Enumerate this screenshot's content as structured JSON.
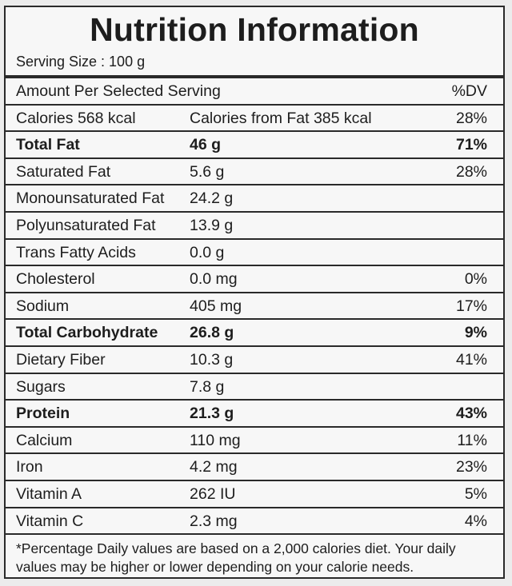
{
  "title": "Nutrition Information",
  "serving_size": "Serving Size : 100 g",
  "header": {
    "label": "Amount Per Selected Serving",
    "dv": "%DV"
  },
  "calories": {
    "label": "Calories 568 kcal",
    "fat_calories": "Calories from Fat 385 kcal",
    "dv": "28%"
  },
  "rows": [
    {
      "name": "Total Fat",
      "amount": "46 g",
      "dv": "71%",
      "bold": true
    },
    {
      "name": "Saturated Fat",
      "amount": "5.6 g",
      "dv": "28%",
      "bold": false
    },
    {
      "name": "Monounsaturated Fat",
      "amount": "24.2 g",
      "dv": "",
      "bold": false
    },
    {
      "name": "Polyunsaturated Fat",
      "amount": "13.9 g",
      "dv": "",
      "bold": false
    },
    {
      "name": "Trans Fatty Acids",
      "amount": "0.0 g",
      "dv": "",
      "bold": false
    },
    {
      "name": "Cholesterol",
      "amount": "0.0 mg",
      "dv": "0%",
      "bold": false
    },
    {
      "name": "Sodium",
      "amount": "405 mg",
      "dv": "17%",
      "bold": false
    },
    {
      "name": "Total Carbohydrate",
      "amount": "26.8 g",
      "dv": "9%",
      "bold": true
    },
    {
      "name": "Dietary Fiber",
      "amount": "10.3 g",
      "dv": "41%",
      "bold": false
    },
    {
      "name": "Sugars",
      "amount": "7.8 g",
      "dv": "",
      "bold": false
    },
    {
      "name": "Protein",
      "amount": "21.3 g",
      "dv": "43%",
      "bold": true
    },
    {
      "name": "Calcium",
      "amount": "110 mg",
      "dv": "11%",
      "bold": false
    },
    {
      "name": "Iron",
      "amount": "4.2 mg",
      "dv": "23%",
      "bold": false
    },
    {
      "name": "Vitamin A",
      "amount": "262 IU",
      "dv": "5%",
      "bold": false
    },
    {
      "name": "Vitamin C",
      "amount": "2.3 mg",
      "dv": "4%",
      "bold": false
    }
  ],
  "footnote": "*Percentage Daily values are based on a 2,000 calories diet. Your daily values may be higher or lower depending on your calorie needs."
}
